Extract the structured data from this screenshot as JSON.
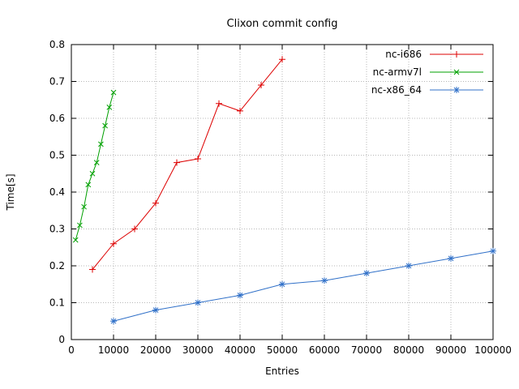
{
  "chart_data": {
    "type": "line",
    "title": "Clixon commit config",
    "xlabel": "Entries",
    "ylabel": "Time[s]",
    "xlim": [
      0,
      100000
    ],
    "ylim": [
      0,
      0.8
    ],
    "xticks": [
      0,
      10000,
      20000,
      30000,
      40000,
      50000,
      60000,
      70000,
      80000,
      90000,
      100000
    ],
    "xtick_labels": [
      "0",
      "10000",
      "20000",
      "30000",
      "40000",
      "50000",
      "60000",
      "70000",
      "80000",
      "90000",
      "100000"
    ],
    "yticks": [
      0,
      0.1,
      0.2,
      0.3,
      0.4,
      0.5,
      0.6,
      0.7,
      0.8
    ],
    "ytick_labels": [
      "0",
      "0.1",
      "0.2",
      "0.3",
      "0.4",
      "0.5",
      "0.6",
      "0.7",
      "0.8"
    ],
    "grid": true,
    "legend_position": "top-right",
    "colors": {
      "background": "#ffffff",
      "axis": "#000000",
      "grid": "#b8b8b8"
    },
    "series": [
      {
        "name": "nc-i686",
        "color": "#dd0000",
        "marker": "plus",
        "x": [
          5000,
          10000,
          15000,
          20000,
          25000,
          30000,
          35000,
          40000,
          45000,
          50000
        ],
        "y": [
          0.19,
          0.26,
          0.3,
          0.37,
          0.48,
          0.49,
          0.64,
          0.62,
          0.69,
          0.76
        ]
      },
      {
        "name": "nc-armv7l",
        "color": "#00a000",
        "marker": "x",
        "x": [
          1000,
          2000,
          3000,
          4000,
          5000,
          6000,
          7000,
          8000,
          9000,
          10000
        ],
        "y": [
          0.27,
          0.31,
          0.36,
          0.42,
          0.45,
          0.48,
          0.53,
          0.58,
          0.63,
          0.67
        ]
      },
      {
        "name": "nc-x86_64",
        "color": "#3070c8",
        "marker": "asterisk",
        "x": [
          10000,
          20000,
          30000,
          40000,
          50000,
          60000,
          70000,
          80000,
          90000,
          100000
        ],
        "y": [
          0.05,
          0.08,
          0.1,
          0.12,
          0.15,
          0.16,
          0.18,
          0.2,
          0.22,
          0.24
        ]
      }
    ]
  }
}
